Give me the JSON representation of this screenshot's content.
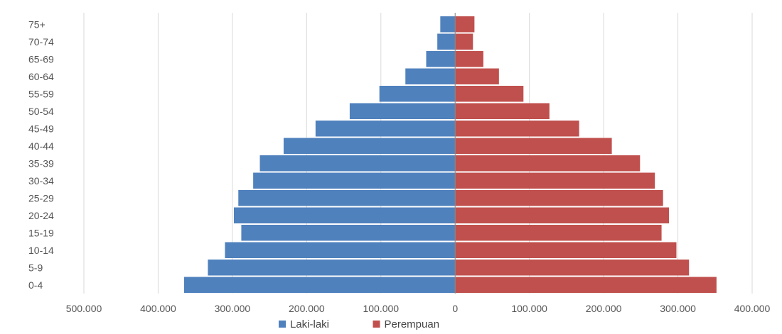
{
  "chart_data": {
    "type": "bar",
    "orientation": "horizontal",
    "layout": "population-pyramid",
    "categories": [
      "0-4",
      "5-9",
      "10-14",
      "15-19",
      "20-24",
      "25-29",
      "30-34",
      "35-39",
      "40-44",
      "45-49",
      "50-54",
      "55-59",
      "60-64",
      "65-69",
      "70-74",
      "75+"
    ],
    "series": [
      {
        "name": "Laki-laki",
        "color": "#4f81bd",
        "values": [
          365000,
          333000,
          310000,
          288000,
          298000,
          292000,
          272000,
          263000,
          231000,
          188000,
          142000,
          102000,
          67000,
          39000,
          24000,
          20000
        ]
      },
      {
        "name": "Perempuan",
        "color": "#c0504d",
        "values": [
          352000,
          315000,
          298000,
          278000,
          288000,
          280000,
          269000,
          249000,
          211000,
          167000,
          127000,
          92000,
          59000,
          38000,
          24000,
          26000
        ]
      }
    ],
    "xlim": [
      -500000,
      400000
    ],
    "x_ticks": [
      -500000,
      -400000,
      -300000,
      -200000,
      -100000,
      0,
      100000,
      200000,
      300000,
      400000
    ],
    "x_tick_labels": [
      "500.000",
      "400.000",
      "300.000",
      "200.000",
      "100.000",
      "0",
      "100.000",
      "200.000",
      "300.000",
      "400.000"
    ],
    "negative_tick_color": "#ff0000",
    "positive_tick_color": "#595959",
    "grid": {
      "vertical": true,
      "color": "#d9d9d9"
    },
    "legend": {
      "position": "bottom-center"
    },
    "title": "",
    "xlabel": "",
    "ylabel": ""
  }
}
